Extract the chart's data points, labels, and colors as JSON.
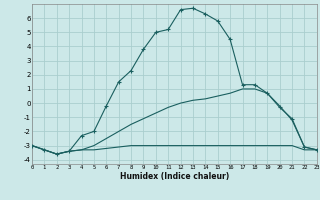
{
  "xlabel": "Humidex (Indice chaleur)",
  "bg_color": "#cce8e8",
  "grid_color": "#aacece",
  "line_color": "#1a5f5f",
  "series_flat_x": [
    0,
    1,
    2,
    3,
    4,
    5,
    6,
    7,
    8,
    9,
    10,
    11,
    12,
    13,
    14,
    15,
    16,
    17,
    18,
    19,
    20,
    21,
    22,
    23
  ],
  "series_flat_y": [
    -3.0,
    -3.3,
    -3.6,
    -3.4,
    -3.3,
    -3.3,
    -3.2,
    -3.1,
    -3.0,
    -3.0,
    -3.0,
    -3.0,
    -3.0,
    -3.0,
    -3.0,
    -3.0,
    -3.0,
    -3.0,
    -3.0,
    -3.0,
    -3.0,
    -3.0,
    -3.3,
    -3.3
  ],
  "series_diag_x": [
    0,
    1,
    2,
    3,
    4,
    5,
    6,
    7,
    8,
    9,
    10,
    11,
    12,
    13,
    14,
    15,
    16,
    17,
    18,
    19,
    20,
    21,
    22,
    23
  ],
  "series_diag_y": [
    -3.0,
    -3.3,
    -3.6,
    -3.4,
    -3.3,
    -3.0,
    -2.5,
    -2.0,
    -1.5,
    -1.1,
    -0.7,
    -0.3,
    0.0,
    0.2,
    0.3,
    0.5,
    0.7,
    1.0,
    1.0,
    0.7,
    -0.2,
    -1.2,
    -3.1,
    -3.3
  ],
  "series_main_x": [
    0,
    1,
    2,
    3,
    4,
    5,
    6,
    7,
    8,
    9,
    10,
    11,
    12,
    13,
    14,
    15,
    16,
    17,
    18,
    19,
    20,
    21,
    22,
    23
  ],
  "series_main_y": [
    -3.0,
    -3.3,
    -3.6,
    -3.4,
    -2.3,
    -2.0,
    -0.2,
    1.5,
    2.3,
    3.8,
    5.0,
    5.2,
    6.6,
    6.7,
    6.3,
    5.8,
    4.5,
    1.3,
    1.3,
    0.7,
    -0.3,
    -1.1,
    -3.1,
    -3.3
  ],
  "ylim": [
    -4.3,
    7.0
  ],
  "xlim": [
    0,
    23
  ],
  "yticks": [
    -4,
    -3,
    -2,
    -1,
    0,
    1,
    2,
    3,
    4,
    5,
    6
  ],
  "xticks": [
    0,
    1,
    2,
    3,
    4,
    5,
    6,
    7,
    8,
    9,
    10,
    11,
    12,
    13,
    14,
    15,
    16,
    17,
    18,
    19,
    20,
    21,
    22,
    23
  ],
  "xtick_labels": [
    "0",
    "1",
    "2",
    "3",
    "4",
    "5",
    "6",
    "7",
    "8",
    "9",
    "10",
    "11",
    "12",
    "13",
    "14",
    "15",
    "16",
    "17",
    "18",
    "19",
    "20",
    "21",
    "22",
    "23"
  ]
}
